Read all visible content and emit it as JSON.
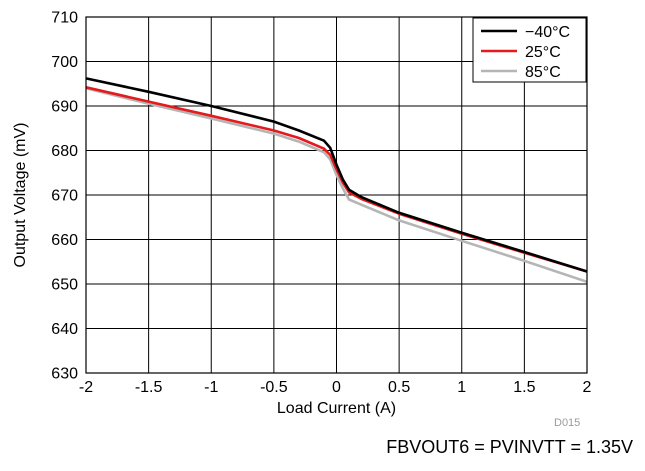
{
  "chart_data": {
    "type": "line",
    "xlabel": "Load Current (A)",
    "ylabel": "Output Voltage (mV)",
    "xlim": [
      -2,
      2
    ],
    "ylim": [
      630,
      710
    ],
    "x_ticks": [
      "-2",
      "-1.5",
      "-1",
      "-0.5",
      "0",
      "0.5",
      "1",
      "1.5",
      "2"
    ],
    "y_ticks": [
      "630",
      "640",
      "650",
      "660",
      "670",
      "680",
      "690",
      "700",
      "710"
    ],
    "grid": true,
    "legend_position": "top-right",
    "series": [
      {
        "name": "−40°C",
        "color": "#000000",
        "x": [
          -2,
          -1.5,
          -1,
          -0.5,
          -0.3,
          -0.1,
          -0.05,
          0,
          0.05,
          0.1,
          0.2,
          0.5,
          1,
          1.5,
          2
        ],
        "y": [
          696.2,
          693.2,
          690.0,
          686.5,
          684.5,
          682.2,
          680.6,
          676.8,
          673.5,
          671.2,
          669.5,
          666.0,
          661.5,
          657.2,
          652.8
        ]
      },
      {
        "name": "25°C",
        "color": "#e41a1c",
        "x": [
          -2,
          -1.5,
          -1,
          -0.5,
          -0.3,
          -0.1,
          -0.05,
          0,
          0.05,
          0.1,
          0.2,
          0.5,
          1,
          1.5,
          2
        ],
        "y": [
          694.2,
          691.0,
          687.8,
          684.5,
          682.8,
          680.4,
          679.0,
          675.8,
          672.8,
          670.6,
          669.1,
          665.8,
          661.3,
          657.0,
          652.8
        ]
      },
      {
        "name": "85°C",
        "color": "#b5b5b5",
        "x": [
          -2,
          -1.5,
          -1,
          -0.5,
          -0.3,
          -0.1,
          -0.05,
          0,
          0.05,
          0.1,
          0.2,
          0.5,
          1,
          1.5,
          2
        ],
        "y": [
          694.0,
          690.5,
          687.2,
          683.8,
          682.0,
          679.6,
          678.0,
          674.5,
          671.5,
          669.0,
          667.8,
          664.3,
          659.7,
          655.2,
          650.5
        ]
      }
    ],
    "figure_id": "D015",
    "caption": "FBVOUT6 = PVINVTT = 1.35V"
  }
}
